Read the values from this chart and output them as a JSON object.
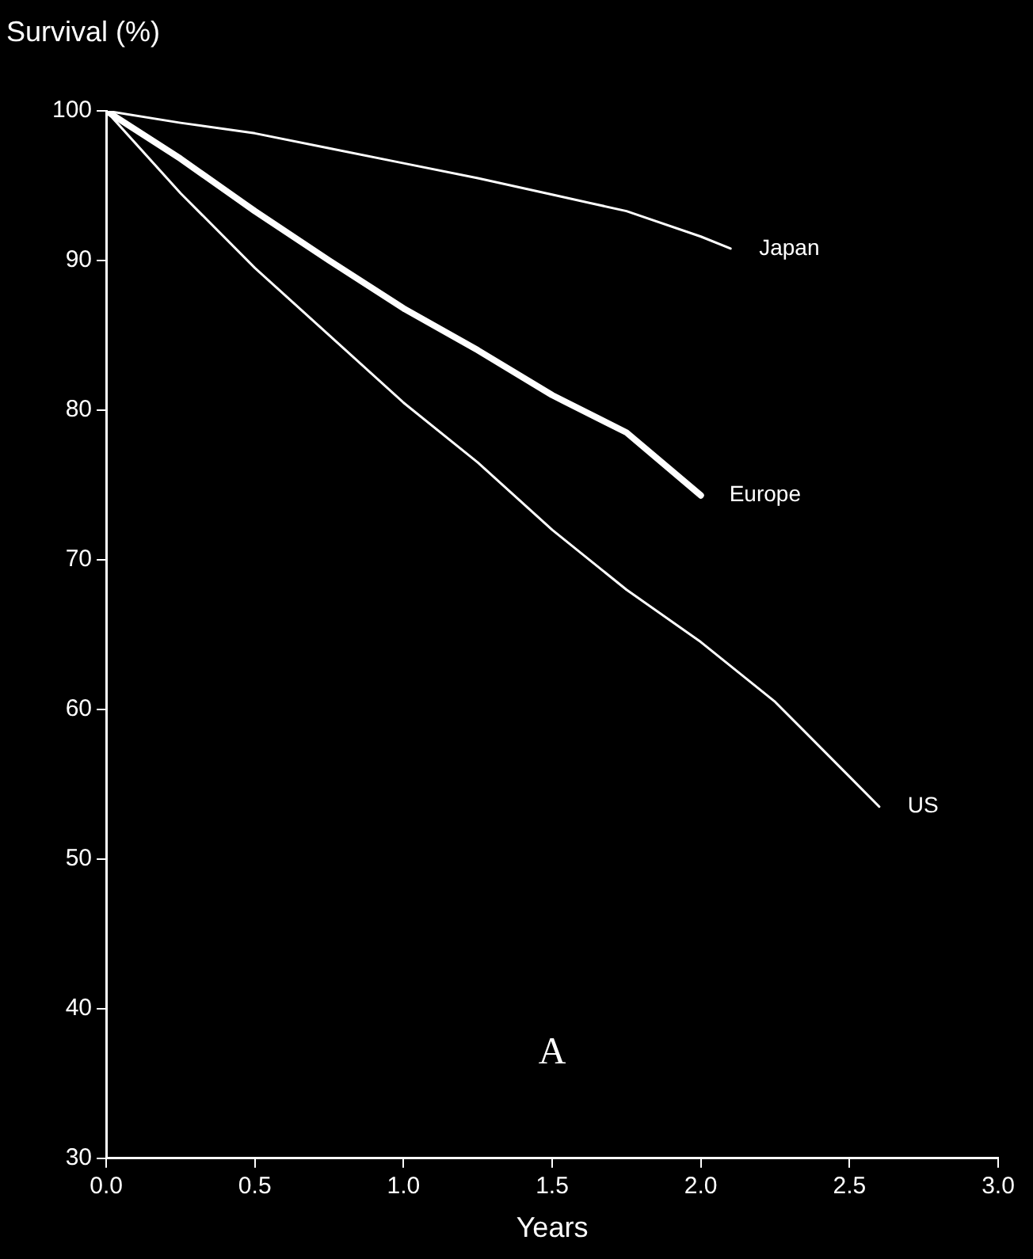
{
  "chart_data": {
    "type": "line",
    "xlabel": "Years",
    "ylabel": "Survival (%)",
    "annotations": [
      "A"
    ],
    "xlim": [
      0,
      3
    ],
    "xticks": [
      {
        "value": 0,
        "label": "0.0"
      },
      {
        "value": 0.5,
        "label": "0.5"
      },
      {
        "value": 1,
        "label": "1.0"
      },
      {
        "value": 1.5,
        "label": "1.5"
      },
      {
        "value": 2,
        "label": "2.0"
      },
      {
        "value": 2.5,
        "label": "2.5"
      },
      {
        "value": 3,
        "label": "3.0"
      }
    ],
    "ylim": [
      30,
      100
    ],
    "yticks": [
      30,
      40,
      50,
      60,
      70,
      80,
      90,
      100
    ],
    "grid": false,
    "legend": false,
    "marker": "none",
    "line_style": "solid",
    "series": [
      {
        "name": "Japan",
        "color": "#ffffff",
        "x": [
          0,
          0.25,
          0.5,
          0.75,
          1,
          1.25,
          1.5,
          1.75,
          2,
          2.1
        ],
        "values": [
          100,
          99.2,
          98.5,
          97.5,
          96.5,
          95.5,
          94.4,
          93.3,
          91.6,
          90.8
        ]
      },
      {
        "name": "Europe",
        "color": "#ffffff",
        "x": [
          0,
          0.25,
          0.5,
          0.75,
          1,
          1.25,
          1.5,
          1.75,
          2
        ],
        "values": [
          100,
          96.8,
          93.3,
          90,
          86.8,
          84,
          81,
          78.5,
          74.3
        ]
      },
      {
        "name": "US",
        "color": "#ffffff",
        "x": [
          0,
          0.25,
          0.5,
          0.75,
          1,
          1.25,
          1.5,
          1.75,
          2,
          2.25,
          2.5,
          2.6
        ],
        "values": [
          100,
          94.5,
          89.5,
          85,
          80.5,
          76.5,
          72,
          68,
          64.5,
          60.5,
          55.5,
          53.5
        ]
      }
    ]
  }
}
